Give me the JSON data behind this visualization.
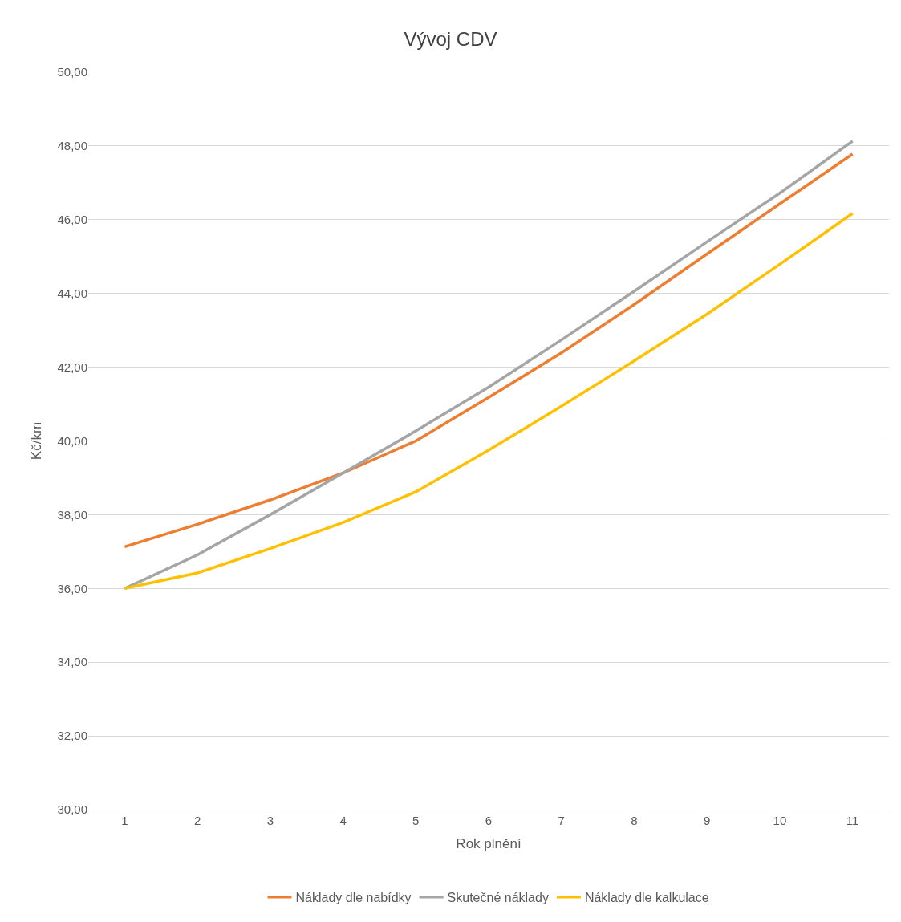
{
  "chart_data": {
    "type": "line",
    "title": "Vývoj CDV",
    "xlabel": "Rok plnění",
    "ylabel": "Kč/km",
    "categories": [
      "1",
      "2",
      "3",
      "4",
      "5",
      "6",
      "7",
      "8",
      "9",
      "10",
      "11"
    ],
    "series": [
      {
        "name": "Náklady dle nabídky",
        "color": "#ed7d31",
        "values": [
          37.13,
          37.74,
          38.4,
          39.13,
          40.0,
          41.18,
          42.39,
          43.7,
          45.07,
          46.43,
          47.78
        ]
      },
      {
        "name": "Skutečné náklady",
        "color": "#a5a5a5",
        "values": [
          36.0,
          36.91,
          38.0,
          39.13,
          40.27,
          41.46,
          42.74,
          44.06,
          45.4,
          46.72,
          48.13
        ]
      },
      {
        "name": "Náklady dle kalkulace",
        "color": "#ffc000",
        "values": [
          36.0,
          36.42,
          37.08,
          37.79,
          38.62,
          39.75,
          40.94,
          42.17,
          43.44,
          44.79,
          46.17
        ]
      }
    ],
    "ylim": [
      30,
      50
    ],
    "yticks": [
      {
        "value": 30,
        "label": "30,00"
      },
      {
        "value": 32,
        "label": "32,00"
      },
      {
        "value": 34,
        "label": "34,00"
      },
      {
        "value": 36,
        "label": "36,00"
      },
      {
        "value": 38,
        "label": "38,00"
      },
      {
        "value": 40,
        "label": "40,00"
      },
      {
        "value": 42,
        "label": "42,00"
      },
      {
        "value": 44,
        "label": "44,00"
      },
      {
        "value": 46,
        "label": "46,00"
      },
      {
        "value": 48,
        "label": "48,00"
      },
      {
        "value": 50,
        "label": "50,00"
      }
    ],
    "grid": "y",
    "legend": "bottom",
    "marker": "none",
    "line_style": "solid"
  }
}
